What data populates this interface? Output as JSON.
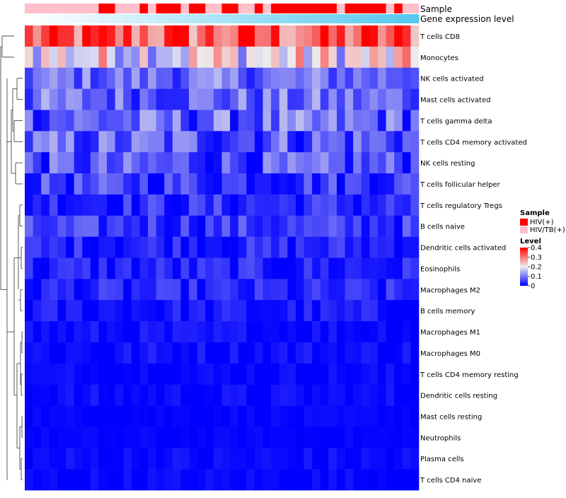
{
  "chart_data": {
    "type": "heatmap",
    "n_columns": 48,
    "annotation_tracks": [
      "Sample",
      "Gene expression level"
    ],
    "sample_groups": [
      "HIV(+)",
      "HIV/TB(+)"
    ],
    "column_sample": [
      1,
      1,
      1,
      1,
      1,
      1,
      1,
      1,
      1,
      0,
      0,
      1,
      1,
      1,
      0,
      1,
      0,
      0,
      0,
      1,
      0,
      0,
      1,
      1,
      0,
      0,
      1,
      1,
      0,
      1,
      0,
      0,
      0,
      0,
      0,
      0,
      0,
      0,
      1,
      0,
      0,
      0,
      0,
      0,
      1,
      0,
      1,
      1
    ],
    "colors": {
      "hiv": "#ff0000",
      "hivtb": "#ffc0cb",
      "low": "#0000ff",
      "mid": "#eeeeee",
      "high": "#ff0000",
      "expr_start": "#ffffff",
      "expr_end": "#55c8ee"
    },
    "legend": {
      "sample_title": "Sample",
      "level_title": "Level",
      "level_ticks": [
        "0.4",
        "0.3",
        "0.2",
        "0.1",
        "0"
      ],
      "level_range": [
        0,
        0.4
      ]
    },
    "rows": [
      {
        "label": "T cells CD8",
        "mean": 0.32,
        "spread": 0.07
      },
      {
        "label": "Monocytes",
        "mean": 0.2,
        "spread": 0.07
      },
      {
        "label": "NK cells activated",
        "mean": 0.09,
        "spread": 0.04
      },
      {
        "label": "Mast cells activated",
        "mean": 0.085,
        "spread": 0.045
      },
      {
        "label": "T cells gamma delta",
        "mean": 0.08,
        "spread": 0.05
      },
      {
        "label": "T cells CD4 memory activated",
        "mean": 0.075,
        "spread": 0.05
      },
      {
        "label": "NK cells resting",
        "mean": 0.06,
        "spread": 0.045
      },
      {
        "label": "T cells follicular helper",
        "mean": 0.05,
        "spread": 0.035
      },
      {
        "label": "T cells regulatory  Tregs",
        "mean": 0.035,
        "spread": 0.03
      },
      {
        "label": "B cells naive",
        "mean": 0.045,
        "spread": 0.03
      },
      {
        "label": "Dendritic cells activated",
        "mean": 0.03,
        "spread": 0.025
      },
      {
        "label": "Eosinophils",
        "mean": 0.025,
        "spread": 0.025
      },
      {
        "label": "Macrophages M2",
        "mean": 0.025,
        "spread": 0.025
      },
      {
        "label": "B cells memory",
        "mean": 0.015,
        "spread": 0.02
      },
      {
        "label": "Macrophages M1",
        "mean": 0.008,
        "spread": 0.015
      },
      {
        "label": "Macrophages M0",
        "mean": 0.01,
        "spread": 0.015
      },
      {
        "label": "T cells CD4 memory resting",
        "mean": 0.005,
        "spread": 0.01
      },
      {
        "label": "Dendritic cells resting",
        "mean": 0.006,
        "spread": 0.012
      },
      {
        "label": "Mast cells resting",
        "mean": 0.003,
        "spread": 0.006
      },
      {
        "label": "Neutrophils",
        "mean": 0.002,
        "spread": 0.005
      },
      {
        "label": "Plasma cells",
        "mean": 0.006,
        "spread": 0.012
      },
      {
        "label": "T cells CD4 naive",
        "mean": 0.004,
        "spread": 0.01
      }
    ]
  }
}
